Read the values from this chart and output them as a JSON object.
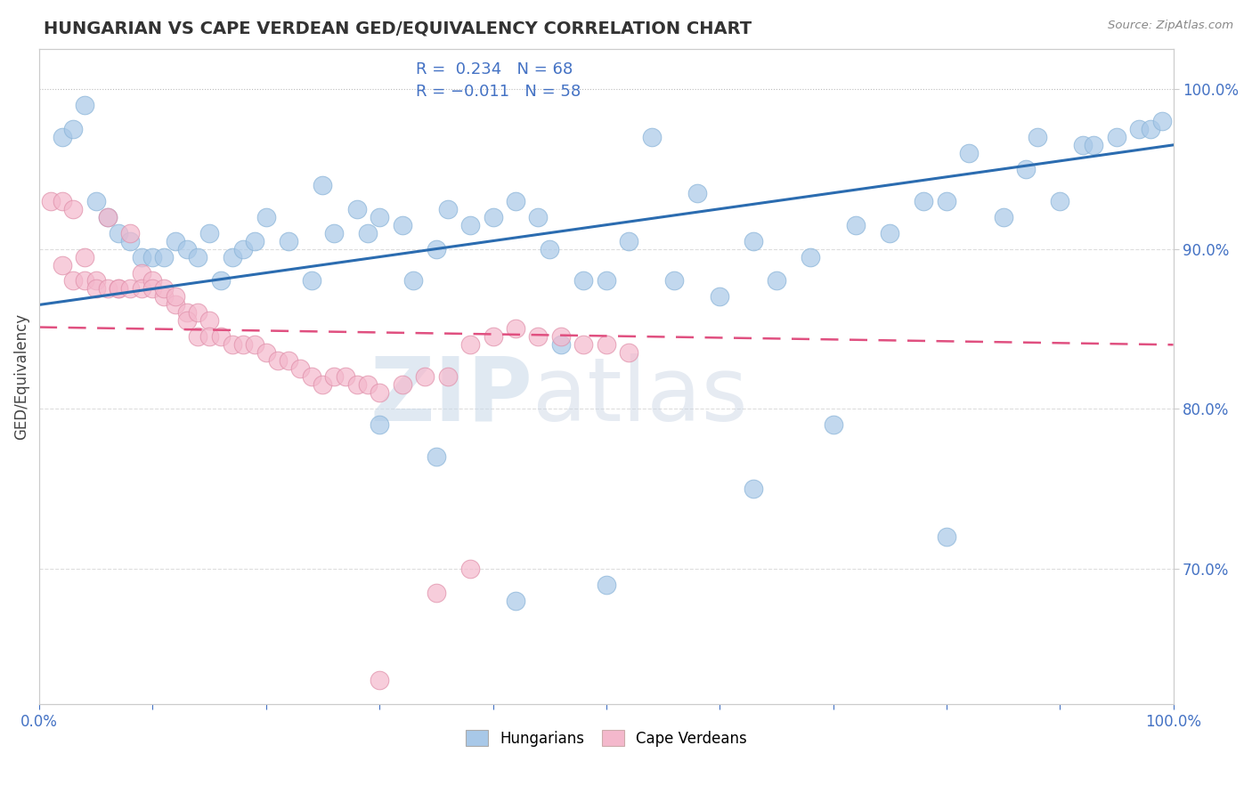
{
  "title": "HUNGARIAN VS CAPE VERDEAN GED/EQUIVALENCY CORRELATION CHART",
  "source_text": "Source: ZipAtlas.com",
  "ylabel": "GED/Equivalency",
  "right_yticks": [
    "70.0%",
    "80.0%",
    "90.0%",
    "100.0%"
  ],
  "right_ytick_vals": [
    0.7,
    0.8,
    0.9,
    1.0
  ],
  "xmin": 0.0,
  "xmax": 1.0,
  "ymin": 0.615,
  "ymax": 1.025,
  "blue_color": "#a8c8e8",
  "pink_color": "#f4b8cc",
  "blue_line_color": "#2b6cb0",
  "pink_line_color": "#e05080",
  "watermark_zip": "ZIP",
  "watermark_atlas": "atlas",
  "blue_trend_x0": 0.0,
  "blue_trend_y0": 0.865,
  "blue_trend_x1": 1.0,
  "blue_trend_y1": 0.965,
  "pink_trend_x0": 0.0,
  "pink_trend_y0": 0.851,
  "pink_trend_x1": 1.0,
  "pink_trend_y1": 0.84,
  "blue_x": [
    0.02,
    0.03,
    0.04,
    0.05,
    0.06,
    0.07,
    0.08,
    0.09,
    0.1,
    0.11,
    0.12,
    0.13,
    0.14,
    0.15,
    0.16,
    0.17,
    0.18,
    0.19,
    0.2,
    0.22,
    0.24,
    0.25,
    0.26,
    0.28,
    0.29,
    0.3,
    0.32,
    0.33,
    0.35,
    0.36,
    0.38,
    0.4,
    0.42,
    0.44,
    0.45,
    0.46,
    0.48,
    0.5,
    0.52,
    0.54,
    0.56,
    0.58,
    0.6,
    0.63,
    0.65,
    0.68,
    0.7,
    0.72,
    0.75,
    0.78,
    0.8,
    0.82,
    0.85,
    0.87,
    0.88,
    0.9,
    0.92,
    0.93,
    0.95,
    0.97,
    0.98,
    0.99,
    0.3,
    0.35,
    0.42,
    0.5,
    0.63,
    0.8
  ],
  "blue_y": [
    0.97,
    0.975,
    0.99,
    0.93,
    0.92,
    0.91,
    0.905,
    0.895,
    0.895,
    0.895,
    0.905,
    0.9,
    0.895,
    0.91,
    0.88,
    0.895,
    0.9,
    0.905,
    0.92,
    0.905,
    0.88,
    0.94,
    0.91,
    0.925,
    0.91,
    0.92,
    0.915,
    0.88,
    0.9,
    0.925,
    0.915,
    0.92,
    0.93,
    0.92,
    0.9,
    0.84,
    0.88,
    0.88,
    0.905,
    0.97,
    0.88,
    0.935,
    0.87,
    0.905,
    0.88,
    0.895,
    0.79,
    0.915,
    0.91,
    0.93,
    0.93,
    0.96,
    0.92,
    0.95,
    0.97,
    0.93,
    0.965,
    0.965,
    0.97,
    0.975,
    0.975,
    0.98,
    0.79,
    0.77,
    0.68,
    0.69,
    0.75,
    0.72
  ],
  "pink_x": [
    0.01,
    0.02,
    0.02,
    0.03,
    0.03,
    0.04,
    0.04,
    0.05,
    0.05,
    0.06,
    0.06,
    0.07,
    0.07,
    0.08,
    0.08,
    0.09,
    0.09,
    0.1,
    0.1,
    0.11,
    0.11,
    0.12,
    0.12,
    0.13,
    0.13,
    0.14,
    0.14,
    0.15,
    0.15,
    0.16,
    0.17,
    0.18,
    0.19,
    0.2,
    0.21,
    0.22,
    0.23,
    0.24,
    0.25,
    0.26,
    0.27,
    0.28,
    0.29,
    0.3,
    0.32,
    0.34,
    0.36,
    0.38,
    0.4,
    0.42,
    0.44,
    0.46,
    0.48,
    0.5,
    0.52,
    0.38,
    0.35,
    0.3
  ],
  "pink_y": [
    0.93,
    0.93,
    0.89,
    0.925,
    0.88,
    0.895,
    0.88,
    0.88,
    0.875,
    0.92,
    0.875,
    0.875,
    0.875,
    0.91,
    0.875,
    0.885,
    0.875,
    0.88,
    0.875,
    0.87,
    0.875,
    0.865,
    0.87,
    0.86,
    0.855,
    0.86,
    0.845,
    0.855,
    0.845,
    0.845,
    0.84,
    0.84,
    0.84,
    0.835,
    0.83,
    0.83,
    0.825,
    0.82,
    0.815,
    0.82,
    0.82,
    0.815,
    0.815,
    0.81,
    0.815,
    0.82,
    0.82,
    0.84,
    0.845,
    0.85,
    0.845,
    0.845,
    0.84,
    0.84,
    0.835,
    0.7,
    0.685,
    0.63
  ]
}
